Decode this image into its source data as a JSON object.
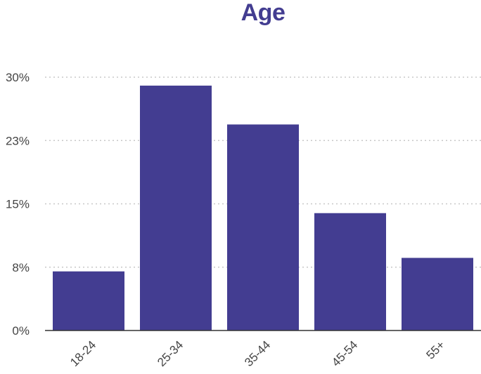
{
  "chart_data": {
    "type": "bar",
    "title": "Age",
    "xlabel": "",
    "ylabel": "",
    "categories": [
      "18-24",
      "25-34",
      "35-44",
      "45-54",
      "55+"
    ],
    "values": [
      7.0,
      29.0,
      24.4,
      13.9,
      8.6
    ],
    "ylim": [
      0,
      30
    ],
    "yticks": [
      0,
      7.5,
      15,
      22.5,
      30
    ],
    "ytick_labels": [
      "0%",
      "8%",
      "15%",
      "23%",
      "30%"
    ],
    "grid": true,
    "legend": "none",
    "colors": {
      "bar": "#433d91",
      "title": "#433d91",
      "grid": "#c8c8c8",
      "axis": "#333333"
    }
  }
}
